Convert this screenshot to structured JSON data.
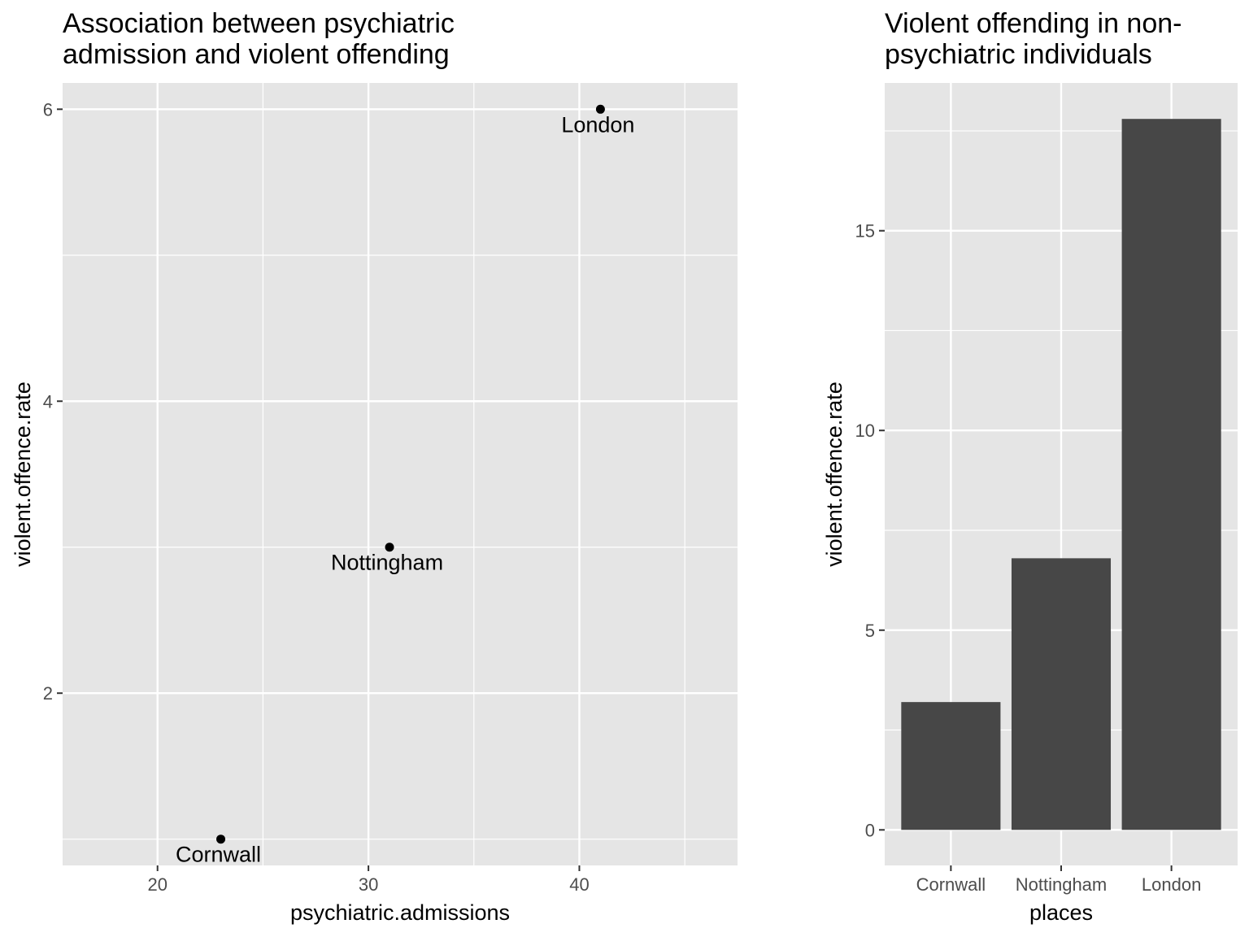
{
  "chart_data": [
    {
      "type": "scatter",
      "title_lines": [
        "Association between psychiatric",
        "admission and violent offending"
      ],
      "xlabel": "psychiatric.admissions",
      "ylabel": "violent.offence.rate",
      "xlim": [
        15.5,
        47.5
      ],
      "ylim": [
        0.82,
        6.18
      ],
      "x_major_ticks": [
        20,
        30,
        40
      ],
      "x_minor_ticks": [
        25,
        35,
        45
      ],
      "y_major_ticks": [
        2,
        4,
        6
      ],
      "y_minor_ticks": [
        1,
        3,
        5
      ],
      "x_tick_labels": [
        "20",
        "30",
        "40"
      ],
      "y_tick_labels": [
        "2",
        "4",
        "6"
      ],
      "grid": true,
      "points": [
        {
          "label": "Cornwall",
          "x": 23,
          "y": 1
        },
        {
          "label": "Nottingham",
          "x": 31,
          "y": 3
        },
        {
          "label": "London",
          "x": 41,
          "y": 6
        }
      ],
      "point_color": "#000000",
      "panel_bg": "#e5e5e5"
    },
    {
      "type": "bar",
      "title_lines": [
        "Violent offending in non-",
        "psychiatric individuals"
      ],
      "xlabel": "places",
      "ylabel": "violent.offence.rate",
      "categories": [
        "Cornwall",
        "Nottingham",
        "London"
      ],
      "values": [
        3.2,
        6.8,
        17.8
      ],
      "ylim": [
        -0.89,
        18.7
      ],
      "y_major_ticks": [
        0,
        5,
        10,
        15
      ],
      "y_minor_ticks": [
        2.5,
        7.5,
        12.5,
        17.5
      ],
      "y_tick_labels": [
        "0",
        "5",
        "10",
        "15"
      ],
      "grid": true,
      "bar_color": "#474747",
      "panel_bg": "#e5e5e5"
    }
  ]
}
